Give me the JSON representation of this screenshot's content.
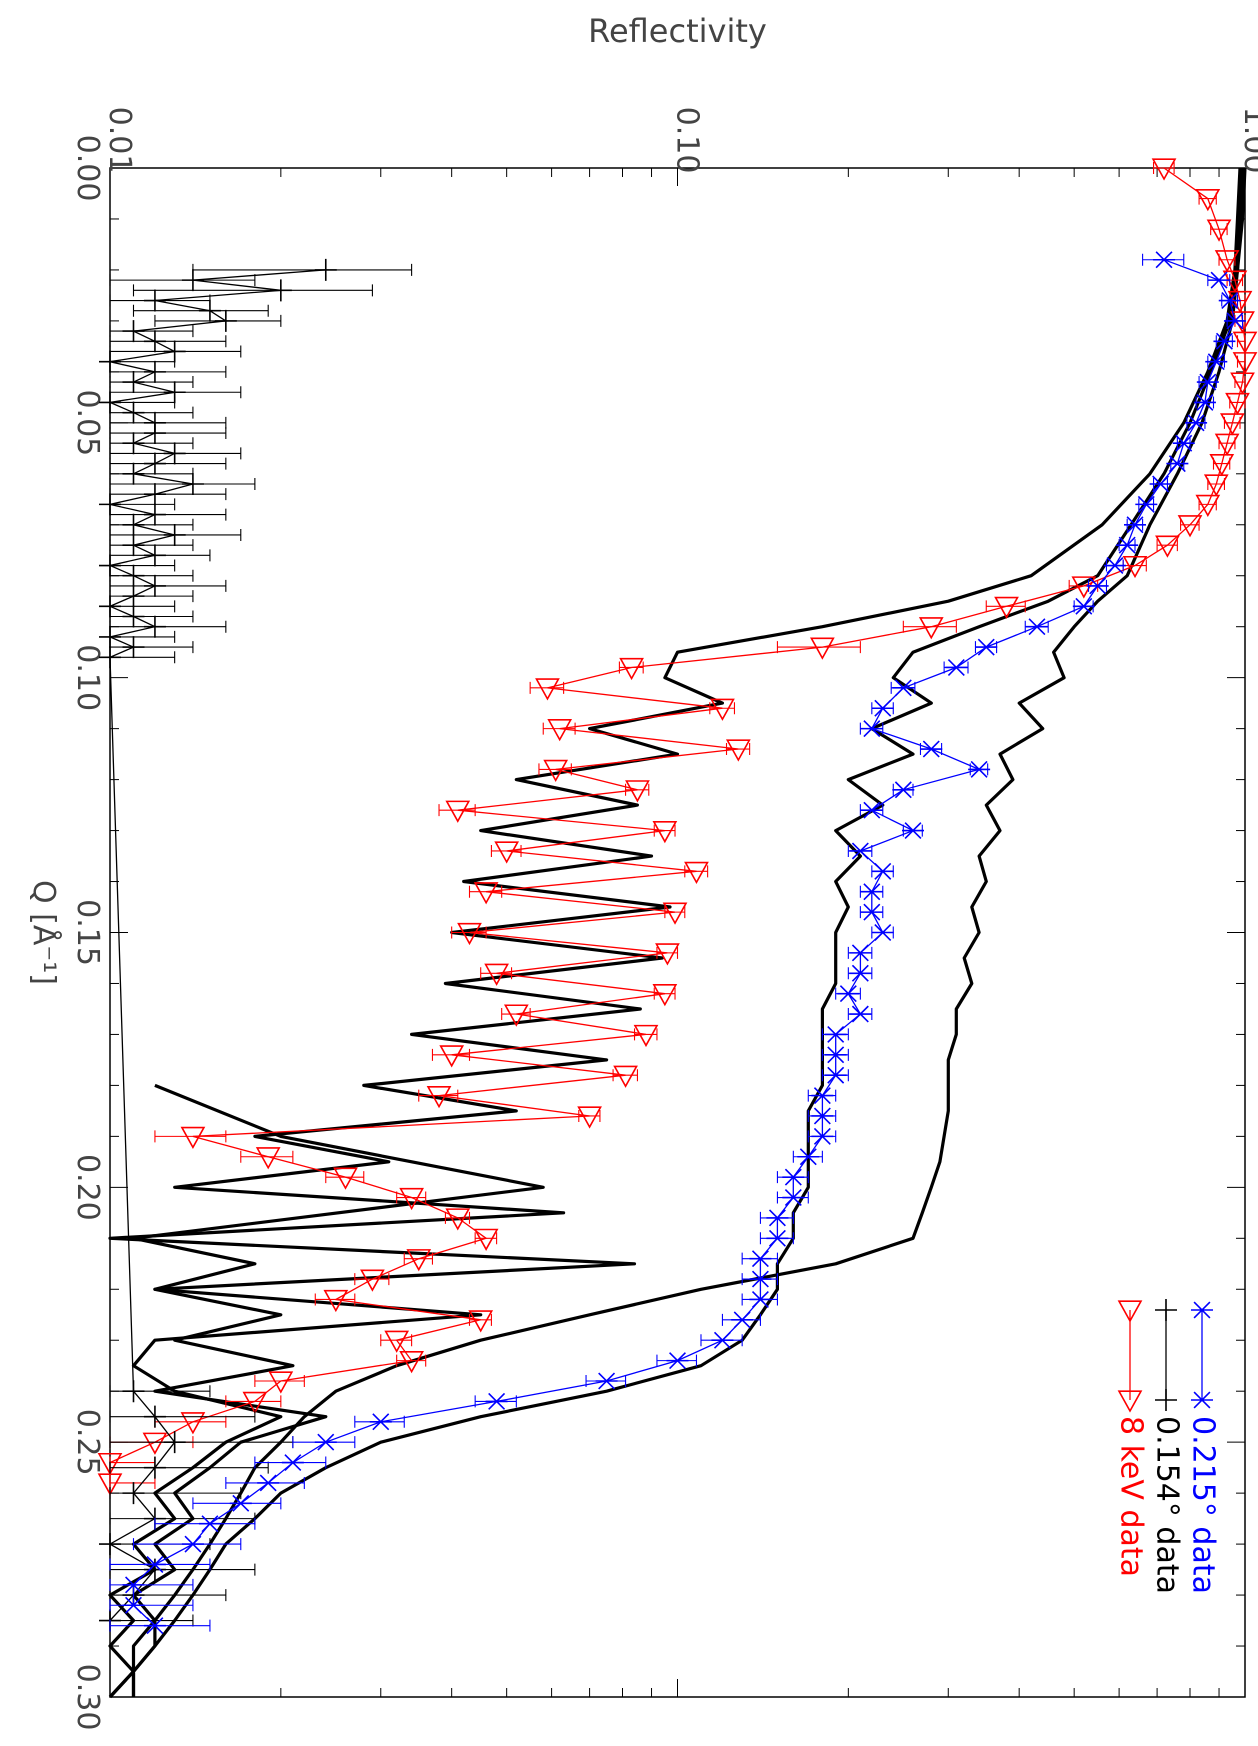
{
  "chart_data": {
    "type": "line",
    "orientation": "rotated-90-clockwise",
    "xlabel": "Q [Å⁻¹]",
    "ylabel": "Reflectivity",
    "xlim": [
      0.0,
      0.3
    ],
    "ylim": [
      0.01,
      1.0
    ],
    "yscale": "log",
    "x_ticks": [
      "0.00",
      "0.05",
      "0.10",
      "0.15",
      "0.20",
      "0.25",
      "0.30"
    ],
    "y_ticks": [
      "0.01",
      "0.10",
      "1.00"
    ],
    "grid": false,
    "legend_position": "bottom-right",
    "colors": {
      "red": "#ff0000",
      "black": "#000000",
      "blue": "#0000ff"
    },
    "series": [
      {
        "name": "8 keV data",
        "marker": "triangle",
        "color": "#ff0000",
        "x": [
          0.0,
          0.006,
          0.012,
          0.018,
          0.022,
          0.026,
          0.03,
          0.034,
          0.038,
          0.042,
          0.046,
          0.05,
          0.054,
          0.058,
          0.062,
          0.066,
          0.07,
          0.074,
          0.078,
          0.082,
          0.086,
          0.09,
          0.094,
          0.098,
          0.102,
          0.106,
          0.11,
          0.114,
          0.118,
          0.122,
          0.126,
          0.13,
          0.134,
          0.138,
          0.142,
          0.146,
          0.15,
          0.154,
          0.158,
          0.162,
          0.166,
          0.17,
          0.174,
          0.178,
          0.182,
          0.186,
          0.19,
          0.194,
          0.198,
          0.202,
          0.206,
          0.21,
          0.214,
          0.218,
          0.222,
          0.226,
          0.23,
          0.234,
          0.238,
          0.242,
          0.246,
          0.25,
          0.254,
          0.258
        ],
        "y": [
          0.72,
          0.86,
          0.9,
          0.93,
          0.96,
          0.98,
          0.99,
          1.0,
          1.0,
          0.99,
          0.97,
          0.95,
          0.93,
          0.91,
          0.89,
          0.86,
          0.8,
          0.73,
          0.64,
          0.52,
          0.38,
          0.28,
          0.18,
          0.083,
          0.059,
          0.12,
          0.062,
          0.128,
          0.061,
          0.085,
          0.041,
          0.095,
          0.05,
          0.108,
          0.046,
          0.099,
          0.043,
          0.096,
          0.048,
          0.095,
          0.052,
          0.088,
          0.04,
          0.081,
          0.038,
          0.07,
          0.014,
          0.019,
          0.026,
          0.034,
          0.041,
          0.046,
          0.035,
          0.029,
          0.025,
          0.045,
          0.032,
          0.034,
          0.02,
          0.018,
          0.014,
          0.012,
          0.01,
          0.01
        ],
        "err": [
          0.03,
          0.03,
          0.03,
          0.03,
          0.03,
          0.03,
          0.03,
          0.03,
          0.03,
          0.03,
          0.03,
          0.03,
          0.03,
          0.03,
          0.03,
          0.03,
          0.03,
          0.03,
          0.03,
          0.03,
          0.03,
          0.03,
          0.03,
          0.004,
          0.004,
          0.006,
          0.004,
          0.006,
          0.004,
          0.004,
          0.003,
          0.004,
          0.003,
          0.005,
          0.003,
          0.004,
          0.003,
          0.004,
          0.003,
          0.004,
          0.003,
          0.004,
          0.003,
          0.004,
          0.003,
          0.003,
          0.002,
          0.002,
          0.002,
          0.002,
          0.002,
          0.002,
          0.002,
          0.002,
          0.002,
          0.002,
          0.002,
          0.002,
          0.002,
          0.002,
          0.002,
          0.002,
          0.002,
          0.002
        ]
      },
      {
        "name": "0.154° data",
        "marker": "plus",
        "color": "#000000",
        "x": [
          0.02,
          0.022,
          0.024,
          0.026,
          0.028,
          0.03,
          0.032,
          0.034,
          0.036,
          0.038,
          0.04,
          0.042,
          0.044,
          0.046,
          0.048,
          0.05,
          0.052,
          0.054,
          0.056,
          0.058,
          0.06,
          0.062,
          0.064,
          0.066,
          0.068,
          0.07,
          0.072,
          0.074,
          0.076,
          0.078,
          0.08,
          0.082,
          0.084,
          0.086,
          0.088,
          0.09,
          0.092,
          0.094,
          0.096,
          0.24,
          0.245,
          0.25,
          0.255,
          0.26,
          0.265,
          0.27,
          0.275,
          0.28,
          0.285
        ],
        "y": [
          0.024,
          0.014,
          0.02,
          0.012,
          0.015,
          0.016,
          0.011,
          0.012,
          0.013,
          0.01,
          0.012,
          0.011,
          0.013,
          0.01,
          0.011,
          0.012,
          0.012,
          0.011,
          0.013,
          0.012,
          0.011,
          0.014,
          0.012,
          0.01,
          0.012,
          0.011,
          0.013,
          0.011,
          0.012,
          0.01,
          0.011,
          0.012,
          0.011,
          0.01,
          0.011,
          0.012,
          0.01,
          0.011,
          0.01,
          0.011,
          0.012,
          0.013,
          0.012,
          0.011,
          0.012,
          0.01,
          0.012,
          0.011,
          0.01
        ],
        "err": [
          0.01,
          0.004,
          0.009,
          0.003,
          0.004,
          0.004,
          0.003,
          0.004,
          0.004,
          0.003,
          0.004,
          0.003,
          0.004,
          0.003,
          0.003,
          0.004,
          0.004,
          0.003,
          0.004,
          0.004,
          0.003,
          0.004,
          0.004,
          0.003,
          0.004,
          0.003,
          0.004,
          0.003,
          0.003,
          0.003,
          0.003,
          0.004,
          0.003,
          0.003,
          0.003,
          0.004,
          0.003,
          0.003,
          0.003,
          0.004,
          0.006,
          0.008,
          0.007,
          0.006,
          0.006,
          0.005,
          0.006,
          0.005,
          0.004
        ]
      },
      {
        "name": "0.215° data",
        "marker": "asterisk",
        "color": "#0000ff",
        "x": [
          0.018,
          0.022,
          0.026,
          0.03,
          0.034,
          0.038,
          0.042,
          0.046,
          0.05,
          0.054,
          0.058,
          0.062,
          0.066,
          0.07,
          0.074,
          0.078,
          0.082,
          0.086,
          0.09,
          0.094,
          0.098,
          0.102,
          0.106,
          0.11,
          0.114,
          0.118,
          0.122,
          0.126,
          0.13,
          0.134,
          0.138,
          0.142,
          0.146,
          0.15,
          0.154,
          0.158,
          0.162,
          0.166,
          0.17,
          0.174,
          0.178,
          0.182,
          0.186,
          0.19,
          0.194,
          0.198,
          0.202,
          0.206,
          0.21,
          0.214,
          0.218,
          0.222,
          0.226,
          0.23,
          0.234,
          0.238,
          0.242,
          0.246,
          0.25,
          0.254,
          0.258,
          0.262,
          0.266,
          0.27,
          0.274,
          0.278,
          0.282,
          0.286
        ],
        "y": [
          0.72,
          0.9,
          0.94,
          0.96,
          0.92,
          0.89,
          0.86,
          0.85,
          0.82,
          0.78,
          0.76,
          0.71,
          0.67,
          0.64,
          0.62,
          0.59,
          0.55,
          0.52,
          0.43,
          0.35,
          0.31,
          0.25,
          0.23,
          0.22,
          0.28,
          0.34,
          0.25,
          0.22,
          0.26,
          0.21,
          0.23,
          0.22,
          0.22,
          0.23,
          0.21,
          0.21,
          0.2,
          0.21,
          0.19,
          0.19,
          0.19,
          0.18,
          0.18,
          0.18,
          0.17,
          0.16,
          0.16,
          0.15,
          0.15,
          0.14,
          0.14,
          0.14,
          0.13,
          0.12,
          0.1,
          0.075,
          0.048,
          0.03,
          0.024,
          0.021,
          0.019,
          0.017,
          0.015,
          0.014,
          0.012,
          0.011,
          0.011,
          0.012
        ],
        "err": [
          0.06,
          0.04,
          0.03,
          0.03,
          0.03,
          0.03,
          0.03,
          0.03,
          0.03,
          0.02,
          0.02,
          0.02,
          0.02,
          0.02,
          0.02,
          0.02,
          0.02,
          0.02,
          0.02,
          0.015,
          0.015,
          0.012,
          0.01,
          0.01,
          0.012,
          0.012,
          0.01,
          0.01,
          0.01,
          0.01,
          0.01,
          0.01,
          0.01,
          0.01,
          0.01,
          0.01,
          0.01,
          0.01,
          0.01,
          0.01,
          0.01,
          0.01,
          0.01,
          0.01,
          0.01,
          0.01,
          0.01,
          0.01,
          0.01,
          0.01,
          0.01,
          0.01,
          0.01,
          0.01,
          0.008,
          0.006,
          0.004,
          0.003,
          0.003,
          0.003,
          0.003,
          0.003,
          0.003,
          0.003,
          0.003,
          0.003,
          0.003,
          0.003
        ]
      }
    ],
    "model_curves": [
      {
        "color": "#000000",
        "x": [
          0.0,
          0.01,
          0.02,
          0.03,
          0.04,
          0.05,
          0.06,
          0.07,
          0.08,
          0.085,
          0.09,
          0.095,
          0.1,
          0.105,
          0.11,
          0.115,
          0.12,
          0.125,
          0.13,
          0.135,
          0.14,
          0.145,
          0.15,
          0.155,
          0.16,
          0.165,
          0.17,
          0.175,
          0.18,
          0.185,
          0.19,
          0.195,
          0.2,
          0.205,
          0.21,
          0.215,
          0.22,
          0.225,
          0.23,
          0.235,
          0.24,
          0.245,
          0.25,
          0.255,
          0.26,
          0.265,
          0.27,
          0.275,
          0.28,
          0.285,
          0.29,
          0.295,
          0.3
        ],
        "y": [
          0.99,
          0.98,
          0.97,
          0.95,
          0.9,
          0.84,
          0.76,
          0.68,
          0.62,
          0.55,
          0.5,
          0.46,
          0.48,
          0.4,
          0.44,
          0.37,
          0.39,
          0.35,
          0.37,
          0.34,
          0.35,
          0.33,
          0.34,
          0.32,
          0.33,
          0.31,
          0.31,
          0.3,
          0.3,
          0.3,
          0.295,
          0.29,
          0.28,
          0.27,
          0.26,
          0.19,
          0.11,
          0.07,
          0.045,
          0.032,
          0.025,
          0.022,
          0.02,
          0.018,
          0.017,
          0.016,
          0.015,
          0.014,
          0.013,
          0.012,
          0.012,
          0.011,
          0.011
        ]
      },
      {
        "color": "#000000",
        "x": [
          0.0,
          0.01,
          0.02,
          0.03,
          0.04,
          0.05,
          0.06,
          0.07,
          0.08,
          0.085,
          0.09,
          0.095,
          0.1,
          0.105,
          0.11,
          0.115,
          0.12,
          0.125,
          0.13,
          0.135,
          0.14,
          0.145,
          0.15,
          0.155,
          0.16,
          0.165,
          0.17,
          0.175,
          0.18,
          0.185,
          0.19,
          0.195,
          0.2,
          0.205,
          0.21,
          0.215,
          0.22,
          0.225,
          0.23,
          0.235,
          0.24,
          0.245,
          0.25,
          0.255,
          0.26,
          0.265,
          0.27,
          0.275,
          0.28,
          0.285,
          0.29,
          0.295,
          0.3
        ],
        "y": [
          1.0,
          0.99,
          0.97,
          0.94,
          0.87,
          0.8,
          0.72,
          0.63,
          0.55,
          0.45,
          0.34,
          0.26,
          0.24,
          0.28,
          0.22,
          0.26,
          0.2,
          0.23,
          0.19,
          0.21,
          0.19,
          0.2,
          0.19,
          0.19,
          0.19,
          0.18,
          0.18,
          0.18,
          0.18,
          0.17,
          0.17,
          0.17,
          0.17,
          0.16,
          0.16,
          0.15,
          0.15,
          0.14,
          0.13,
          0.11,
          0.075,
          0.045,
          0.03,
          0.024,
          0.02,
          0.018,
          0.016,
          0.015,
          0.014,
          0.013,
          0.012,
          0.011,
          0.011
        ]
      },
      {
        "color": "#000000",
        "x": [
          0.0,
          0.01,
          0.02,
          0.03,
          0.04,
          0.05,
          0.06,
          0.07,
          0.08,
          0.085,
          0.09,
          0.095,
          0.1,
          0.105,
          0.11,
          0.115,
          0.12,
          0.125,
          0.13,
          0.135,
          0.14,
          0.145,
          0.15,
          0.155,
          0.16,
          0.165,
          0.17,
          0.175,
          0.18,
          0.185,
          0.19,
          0.195,
          0.2,
          0.205,
          0.21,
          0.215,
          0.22,
          0.225,
          0.23,
          0.235,
          0.24,
          0.245,
          0.25,
          0.255,
          0.26,
          0.265,
          0.27,
          0.275,
          0.28,
          0.285,
          0.29,
          0.295,
          0.3
        ],
        "y": [
          0.98,
          0.97,
          0.96,
          0.93,
          0.86,
          0.78,
          0.68,
          0.56,
          0.42,
          0.3,
          0.18,
          0.1,
          0.095,
          0.12,
          0.07,
          0.1,
          0.052,
          0.085,
          0.045,
          0.09,
          0.042,
          0.097,
          0.04,
          0.094,
          0.039,
          0.086,
          0.034,
          0.075,
          0.028,
          0.052,
          0.018,
          0.031,
          0.013,
          0.063,
          0.01,
          0.084,
          0.012,
          0.02,
          0.013,
          0.021,
          0.012,
          0.024,
          0.017,
          0.015,
          0.013,
          0.014,
          0.012,
          0.013,
          0.011,
          0.012,
          0.011,
          0.011,
          0.01
        ]
      },
      {
        "color": "#000000",
        "x": [
          0.18,
          0.19,
          0.2,
          0.21,
          0.215,
          0.22,
          0.225,
          0.23,
          0.235,
          0.24,
          0.245,
          0.25,
          0.255,
          0.26,
          0.265,
          0.27,
          0.275,
          0.28,
          0.285,
          0.29,
          0.295,
          0.3
        ],
        "y": [
          0.012,
          0.02,
          0.058,
          0.011,
          0.018,
          0.012,
          0.045,
          0.012,
          0.011,
          0.013,
          0.02,
          0.016,
          0.014,
          0.012,
          0.013,
          0.011,
          0.012,
          0.01,
          0.011,
          0.01,
          0.011,
          0.01
        ]
      }
    ]
  }
}
